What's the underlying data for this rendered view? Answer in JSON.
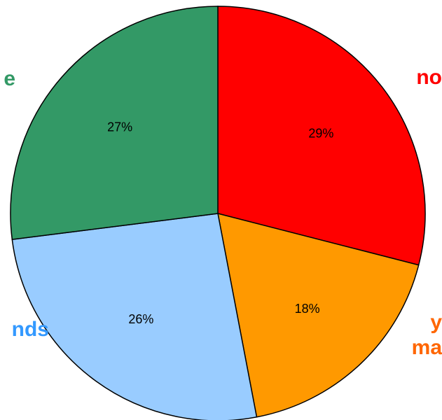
{
  "chart_data": {
    "type": "pie",
    "slices": [
      {
        "label": "no",
        "value": 29,
        "display": "29%",
        "color": "#ff0000"
      },
      {
        "label": "y\nma",
        "value": 18,
        "display": "18%",
        "color": "#ff9900"
      },
      {
        "label": "nds",
        "value": 26,
        "display": "26%",
        "color": "#99ccff"
      },
      {
        "label": "e",
        "value": 27,
        "display": "27%",
        "color": "#339966"
      }
    ],
    "label_colors": [
      "#ff0000",
      "#ff6600",
      "#3399ff",
      "#339966"
    ],
    "start_angle": "12 o'clock",
    "direction": "clockwise",
    "stroke_color": "#000000"
  }
}
